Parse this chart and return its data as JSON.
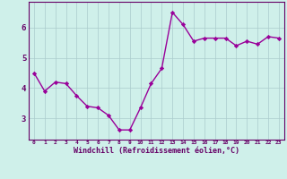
{
  "x": [
    0,
    1,
    2,
    3,
    4,
    5,
    6,
    7,
    8,
    9,
    10,
    11,
    12,
    13,
    14,
    15,
    16,
    17,
    18,
    19,
    20,
    21,
    22,
    23
  ],
  "y": [
    4.5,
    3.9,
    4.2,
    4.15,
    3.75,
    3.4,
    3.35,
    3.1,
    2.62,
    2.62,
    3.35,
    4.15,
    4.65,
    6.5,
    6.1,
    5.55,
    5.65,
    5.65,
    5.65,
    5.4,
    5.55,
    5.45,
    5.7,
    5.65
  ],
  "line_color": "#990099",
  "marker": "D",
  "marker_size": 2.2,
  "bg_color": "#cff0ea",
  "grid_color": "#aacccc",
  "xlabel": "Windchill (Refroidissement éolien,°C)",
  "xlabel_color": "#660066",
  "tick_color": "#660066",
  "ylabel_ticks": [
    3,
    4,
    5,
    6
  ],
  "xtick_labels": [
    "0",
    "1",
    "2",
    "3",
    "4",
    "5",
    "6",
    "7",
    "8",
    "9",
    "10",
    "11",
    "12",
    "13",
    "14",
    "15",
    "16",
    "17",
    "18",
    "19",
    "20",
    "21",
    "22",
    "23"
  ],
  "ylim": [
    2.3,
    6.85
  ],
  "xlim": [
    -0.5,
    23.5
  ],
  "spine_color": "#660066",
  "linewidth": 1.0
}
